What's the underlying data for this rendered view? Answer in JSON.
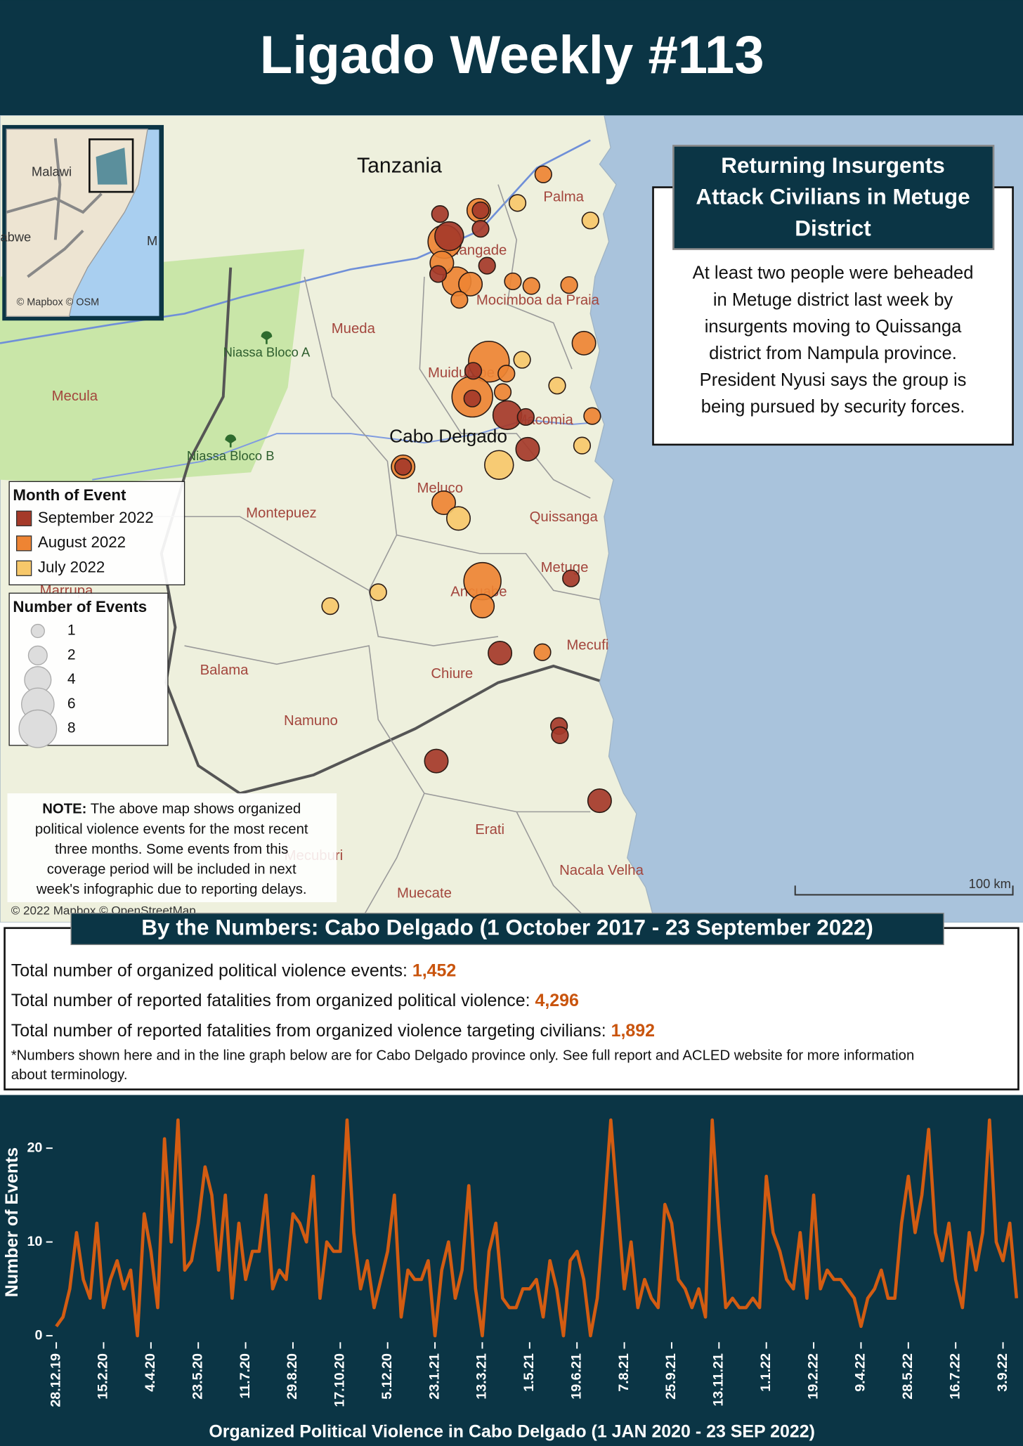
{
  "header": {
    "title": "Ligado Weekly #113"
  },
  "map": {
    "inset": {
      "labels": [
        "Malawi",
        "abwe",
        "M"
      ],
      "attribution": "© Mapbox © OSM"
    },
    "country_label": "Tanzania",
    "province_label": "Cabo Delgado",
    "reserve_labels": [
      "Niassa Bloco A",
      "Niassa Bloco B"
    ],
    "district_labels": [
      "Palma",
      "Nangade",
      "Mocimboa da Praia",
      "Mueda",
      "Muidumbe",
      "Macomia",
      "Mecula",
      "Meluco",
      "Montepuez",
      "Quissanga",
      "Metuge",
      "Ancuabe",
      "Mecufi",
      "Balama",
      "Chiure",
      "Namuno",
      "Erati",
      "Mecuburi",
      "Nacala Velha",
      "Muecate",
      "Marrupa"
    ],
    "attribution": "© 2022 Mapbox © OpenStreetMap",
    "scale": "100 km",
    "color_legend": {
      "title": "Month of Event",
      "items": [
        {
          "name": "September 2022",
          "color": "#a53a29"
        },
        {
          "name": "August 2022",
          "color": "#ee8433"
        },
        {
          "name": "July 2022",
          "color": "#f7c86a"
        }
      ]
    },
    "size_legend": {
      "title": "Number of Events",
      "values": [
        1,
        2,
        4,
        6,
        8
      ]
    },
    "events": [
      {
        "month": "August 2022",
        "count": 6
      },
      {
        "month": "August 2022",
        "count": 6
      },
      {
        "month": "August 2022",
        "count": 5
      },
      {
        "month": "August 2022",
        "count": 4
      },
      {
        "month": "September 2022",
        "count": 3
      },
      {
        "month": "September 2022",
        "count": 3
      },
      {
        "month": "August 2022",
        "count": 3
      },
      {
        "month": "July 2022",
        "count": 3
      },
      {
        "month": "August 2022",
        "count": 2
      },
      {
        "month": "September 2022",
        "count": 1
      },
      {
        "month": "August 2022",
        "count": 2
      },
      {
        "month": "August 2022",
        "count": 2
      },
      {
        "month": "August 2022",
        "count": 2
      },
      {
        "month": "August 2022",
        "count": 2
      },
      {
        "month": "September 2022",
        "count": 1
      },
      {
        "month": "August 2022",
        "count": 2
      },
      {
        "month": "August 2022",
        "count": 2
      },
      {
        "month": "July 2022",
        "count": 2
      },
      {
        "month": "September 2022",
        "count": 2
      },
      {
        "month": "September 2022",
        "count": 2
      },
      {
        "month": "September 2022",
        "count": 2
      },
      {
        "month": "September 2022",
        "count": 2
      },
      {
        "month": "September 2022",
        "count": 1
      },
      {
        "month": "September 2022",
        "count": 1
      },
      {
        "month": "September 2022",
        "count": 1
      },
      {
        "month": "September 2022",
        "count": 1
      },
      {
        "month": "August 2022",
        "count": 1
      },
      {
        "month": "September 2022",
        "count": 1
      },
      {
        "month": "September 2022",
        "count": 1
      },
      {
        "month": "August 2022",
        "count": 1
      },
      {
        "month": "September 2022",
        "count": 1
      },
      {
        "month": "September 2022",
        "count": 1
      },
      {
        "month": "September 2022",
        "count": 1
      },
      {
        "month": "September 2022",
        "count": 1
      },
      {
        "month": "August 2022",
        "count": 1
      },
      {
        "month": "August 2022",
        "count": 1
      },
      {
        "month": "August 2022",
        "count": 1
      },
      {
        "month": "August 2022",
        "count": 1
      },
      {
        "month": "August 2022",
        "count": 1
      },
      {
        "month": "August 2022",
        "count": 1
      },
      {
        "month": "August 2022",
        "count": 1
      },
      {
        "month": "July 2022",
        "count": 1
      },
      {
        "month": "July 2022",
        "count": 1
      },
      {
        "month": "July 2022",
        "count": 1
      },
      {
        "month": "July 2022",
        "count": 1
      },
      {
        "month": "July 2022",
        "count": 1
      },
      {
        "month": "July 2022",
        "count": 1
      },
      {
        "month": "July 2022",
        "count": 1
      }
    ],
    "callout": {
      "title_lines": [
        "Returning Insurgents",
        "Attack Civilians in Metuge",
        "District"
      ],
      "body_lines": [
        "At least two people were beheaded",
        "in Metuge district last week by",
        "insurgents moving to Quissanga",
        "district from Nampula province.",
        "President Nyusi says the group is",
        "being pursued by security forces."
      ]
    },
    "note": {
      "label": "NOTE:",
      "lines": [
        " The above map shows organized",
        "political violence events for the most recent",
        "three months. Some events from this",
        "coverage period will be included in next",
        "week's infographic due to reporting delays."
      ]
    }
  },
  "numbers": {
    "title": "By the Numbers: Cabo Delgado (1 October 2017 - 23 September 2022)",
    "stats": [
      {
        "label": "Total number of organized political violence events: ",
        "value": "1,452"
      },
      {
        "label": "Total number of reported fatalities from organized political violence: ",
        "value": "4,296"
      },
      {
        "label": "Total number of reported fatalities from organized violence targeting civilians: ",
        "value": "1,892"
      }
    ],
    "footnote_lines": [
      "*Numbers shown here and in the line graph below are for Cabo Delgado province only. See full report and ACLED website for more information",
      "about terminology."
    ]
  },
  "chart_data": {
    "type": "line",
    "x_label": "Organized Political Violence in Cabo Delgado (1 JAN 2020 - 23 SEP 2022)",
    "y_label": "Number of Events",
    "color": "#d35c12",
    "ylim": [
      0,
      24
    ],
    "yticks": [
      0,
      10,
      20
    ],
    "categories": [
      "28.12.19",
      null,
      null,
      null,
      null,
      null,
      null,
      "15.2.20",
      null,
      null,
      null,
      null,
      null,
      null,
      "4.4.20",
      null,
      null,
      null,
      null,
      null,
      null,
      "23.5.20",
      null,
      null,
      null,
      null,
      null,
      null,
      "11.7.20",
      null,
      null,
      null,
      null,
      null,
      null,
      "29.8.20",
      null,
      null,
      null,
      null,
      null,
      null,
      "17.10.20",
      null,
      null,
      null,
      null,
      null,
      null,
      "5.12.20",
      null,
      null,
      null,
      null,
      null,
      null,
      "23.1.21",
      null,
      null,
      null,
      null,
      null,
      null,
      "13.3.21",
      null,
      null,
      null,
      null,
      null,
      null,
      "1.5.21",
      null,
      null,
      null,
      null,
      null,
      null,
      "19.6.21",
      null,
      null,
      null,
      null,
      null,
      null,
      "7.8.21",
      null,
      null,
      null,
      null,
      null,
      null,
      "25.9.21",
      null,
      null,
      null,
      null,
      null,
      null,
      "13.11.21",
      null,
      null,
      null,
      null,
      null,
      null,
      "1.1.22",
      null,
      null,
      null,
      null,
      null,
      null,
      "19.2.22",
      null,
      null,
      null,
      null,
      null,
      null,
      "9.4.22",
      null,
      null,
      null,
      null,
      null,
      null,
      "28.5.22",
      null,
      null,
      null,
      null,
      null,
      null,
      "16.7.22",
      null,
      null,
      null,
      null,
      null,
      null,
      "3.9.22",
      null,
      null
    ],
    "values": [
      1,
      2,
      5,
      11,
      6,
      4,
      12,
      3,
      6,
      8,
      5,
      7,
      0,
      13,
      9,
      3,
      21,
      10,
      23,
      7,
      8,
      12,
      18,
      15,
      7,
      15,
      4,
      12,
      6,
      9,
      9,
      15,
      5,
      7,
      6,
      13,
      12,
      10,
      17,
      4,
      10,
      9,
      9,
      23,
      11,
      5,
      8,
      3,
      6,
      9,
      15,
      2,
      7,
      6,
      6,
      8,
      0,
      7,
      10,
      4,
      7,
      16,
      5,
      0,
      9,
      12,
      4,
      3,
      3,
      5,
      5,
      6,
      2,
      8,
      5,
      0,
      8,
      9,
      6,
      0,
      4,
      13,
      23,
      14,
      5,
      10,
      3,
      6,
      4,
      3,
      14,
      12,
      6,
      5,
      3,
      5,
      2,
      23,
      12,
      3,
      4,
      3,
      3,
      4,
      3,
      17,
      11,
      9,
      6,
      5,
      11,
      4,
      15,
      5,
      7,
      6,
      6,
      5,
      4,
      1,
      4,
      5,
      7,
      4,
      4,
      12,
      17,
      11,
      15,
      22,
      11,
      8,
      12,
      6,
      3,
      11,
      7,
      11,
      23,
      10,
      8,
      12,
      4
    ]
  }
}
